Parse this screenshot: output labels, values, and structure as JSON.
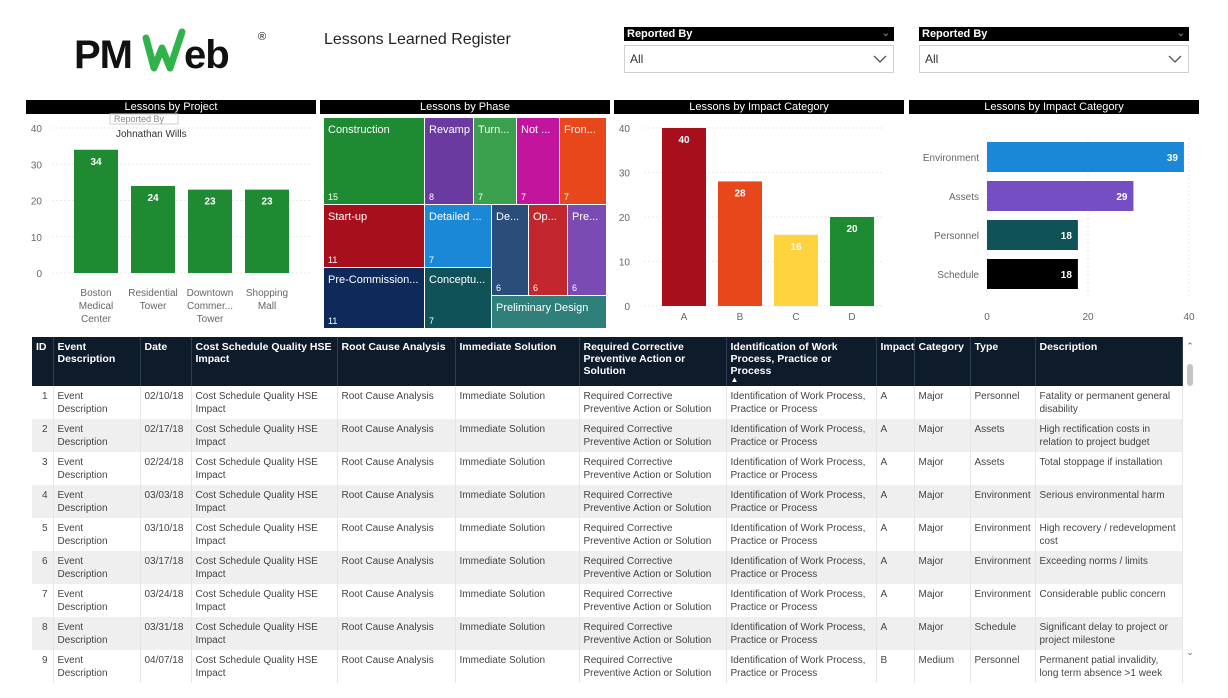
{
  "header": {
    "logo_text": "PMWeb",
    "logo_mark": "®",
    "title": "Lessons Learned Register"
  },
  "slicers": [
    {
      "label": "Reported By",
      "value": "All"
    },
    {
      "label": "Reported By",
      "value": "All"
    }
  ],
  "colors": {
    "green": "#1e8a32",
    "dark_green": "#11702a",
    "blue": "#118dff",
    "purple": "#744ec2",
    "teal": "#0f5257",
    "black": "#000000",
    "header_navy": "#0d1b2a"
  },
  "chart_data": [
    {
      "type": "bar",
      "title": "Lessons by Project",
      "categories": [
        "Boston Medical Center",
        "Residential Tower",
        "Downtown Commer... Tower",
        "Shopping Mall"
      ],
      "category_lines": [
        [
          "Boston",
          "Medical",
          "Center"
        ],
        [
          "Residential",
          "Tower"
        ],
        [
          "Downtown",
          "Commer...",
          "Tower"
        ],
        [
          "Shopping",
          "Mall"
        ]
      ],
      "values": [
        34,
        24,
        23,
        23
      ],
      "ylim": [
        0,
        40
      ],
      "yticks": [
        0,
        10,
        20,
        30,
        40
      ],
      "color": "#1e8a32",
      "tooltip": "Johnathan Wills",
      "tooltip_partial": "Reported By"
    },
    {
      "type": "treemap",
      "title": "Lessons by Phase",
      "items": [
        {
          "label": "Construction",
          "value": 15,
          "color": "#1e8a32"
        },
        {
          "label": "Revamp",
          "value": 8,
          "color": "#6b3aa0"
        },
        {
          "label": "Turn...",
          "value": 7,
          "color": "#3aa04e"
        },
        {
          "label": "Not ...",
          "value": 7,
          "color": "#c2149d"
        },
        {
          "label": "Fron...",
          "value": 7,
          "color": "#e8471c"
        },
        {
          "label": "Start-up",
          "value": 11,
          "color": "#a80f1c"
        },
        {
          "label": "Detailed ...",
          "value": 7,
          "color": "#1a88d6"
        },
        {
          "label": "De...",
          "value": 6,
          "color": "#2a4d7a"
        },
        {
          "label": "Op...",
          "value": 6,
          "color": "#c1272d"
        },
        {
          "label": "Pre...",
          "value": 6,
          "color": "#7a4bb3"
        },
        {
          "label": "Pre-Commission...",
          "value": 11,
          "color": "#0e2a5a"
        },
        {
          "label": "Conceptu...",
          "value": 7,
          "color": "#0f5257"
        },
        {
          "label": "Preliminary Design",
          "value": "",
          "color": "#2f7f7a"
        }
      ]
    },
    {
      "type": "bar",
      "title": "Lessons by Impact Category",
      "categories": [
        "A",
        "B",
        "C",
        "D"
      ],
      "values": [
        40,
        28,
        16,
        20
      ],
      "colors": [
        "#a80f1c",
        "#e8471c",
        "#ffd23f",
        "#1e8a32"
      ],
      "ylim": [
        0,
        40
      ],
      "yticks": [
        0,
        10,
        20,
        30,
        40
      ]
    },
    {
      "type": "bar",
      "orientation": "horizontal",
      "title": "Lessons by Impact Category",
      "categories": [
        "Environment",
        "Assets",
        "Personnel",
        "Schedule"
      ],
      "values": [
        39,
        29,
        18,
        18
      ],
      "colors": [
        "#1a88d6",
        "#744ec2",
        "#0f5257",
        "#000000"
      ],
      "xlim": [
        0,
        40
      ],
      "xticks": [
        0,
        20,
        40
      ]
    }
  ],
  "table": {
    "columns": [
      "ID",
      "Event Description",
      "Date",
      "Cost Schedule Quality HSE Impact",
      "Root Cause Analysis",
      "Immediate Solution",
      "Required Corrective Preventive Action or Solution",
      "Identification of Work Process, Practice or Process",
      "Impact",
      "Category",
      "Type",
      "Description"
    ],
    "rows": [
      [
        "1",
        "Event Description",
        "02/10/18",
        "Cost Schedule Quality HSE Impact",
        "Root Cause Analysis",
        "Immediate Solution",
        "Required Corrective Preventive Action or Solution",
        "Identification of Work Process, Practice or Process",
        "A",
        "Major",
        "Personnel",
        "Fatality or permanent general disability"
      ],
      [
        "2",
        "Event Description",
        "02/17/18",
        "Cost Schedule Quality HSE Impact",
        "Root Cause Analysis",
        "Immediate Solution",
        "Required Corrective Preventive Action or Solution",
        "Identification of Work Process, Practice or Process",
        "A",
        "Major",
        "Assets",
        "High rectification costs in relation to project budget"
      ],
      [
        "3",
        "Event Description",
        "02/24/18",
        "Cost Schedule Quality HSE Impact",
        "Root Cause Analysis",
        "Immediate Solution",
        "Required Corrective Preventive Action or Solution",
        "Identification of Work Process, Practice or Process",
        "A",
        "Major",
        "Assets",
        "Total stoppage if installation"
      ],
      [
        "4",
        "Event Description",
        "03/03/18",
        "Cost Schedule Quality HSE Impact",
        "Root Cause Analysis",
        "Immediate Solution",
        "Required Corrective Preventive Action or Solution",
        "Identification of Work Process, Practice or Process",
        "A",
        "Major",
        "Environment",
        "Serious environmental harm"
      ],
      [
        "5",
        "Event Description",
        "03/10/18",
        "Cost Schedule Quality HSE Impact",
        "Root Cause Analysis",
        "Immediate Solution",
        "Required Corrective Preventive Action or Solution",
        "Identification of Work Process, Practice or Process",
        "A",
        "Major",
        "Environment",
        "High recovery / redevelopment cost"
      ],
      [
        "6",
        "Event Description",
        "03/17/18",
        "Cost Schedule Quality HSE Impact",
        "Root Cause Analysis",
        "Immediate Solution",
        "Required Corrective Preventive Action or Solution",
        "Identification of Work Process, Practice or Process",
        "A",
        "Major",
        "Environment",
        "Exceeding norms / limits"
      ],
      [
        "7",
        "Event Description",
        "03/24/18",
        "Cost Schedule Quality HSE Impact",
        "Root Cause Analysis",
        "Immediate Solution",
        "Required Corrective Preventive Action or Solution",
        "Identification of Work Process, Practice or Process",
        "A",
        "Major",
        "Environment",
        "Considerable public concern"
      ],
      [
        "8",
        "Event Description",
        "03/31/18",
        "Cost Schedule Quality HSE Impact",
        "Root Cause Analysis",
        "Immediate Solution",
        "Required Corrective Preventive Action or Solution",
        "Identification of Work Process, Practice or Process",
        "A",
        "Major",
        "Schedule",
        "Significant delay to project or project milestone"
      ],
      [
        "9",
        "Event Description",
        "04/07/18",
        "Cost Schedule Quality HSE Impact",
        "Root Cause Analysis",
        "Immediate Solution",
        "Required Corrective Preventive Action or Solution",
        "Identification of Work Process, Practice or Process",
        "B",
        "Medium",
        "Personnel",
        "Permanent patial invalidity, long term absence >1 week"
      ]
    ]
  }
}
